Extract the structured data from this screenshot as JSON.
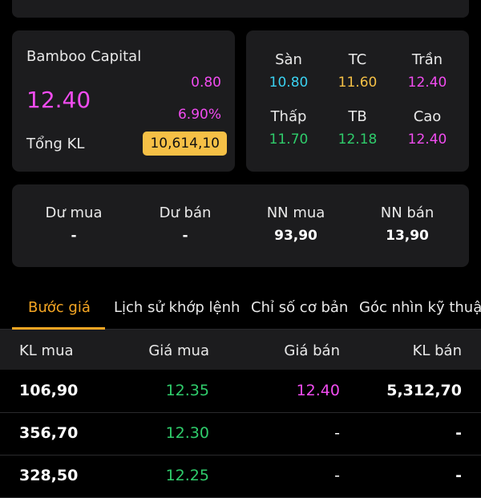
{
  "stock": {
    "company": "Bamboo Capital",
    "price": "12.40",
    "change": "0.80",
    "change_pct": "6.90%",
    "volume_label": "Tổng KL",
    "volume_value": "10,614,10"
  },
  "range": {
    "floor_label": "Sàn",
    "floor": "10.80",
    "ref_label": "TC",
    "ref": "11.60",
    "ceil_label": "Trần",
    "ceil": "12.40",
    "low_label": "Thấp",
    "low": "11.70",
    "avg_label": "TB",
    "avg": "12.18",
    "high_label": "Cao",
    "high": "12.40"
  },
  "foreign": {
    "buy_rem_label": "Dư mua",
    "buy_rem": "-",
    "sell_rem_label": "Dư bán",
    "sell_rem": "-",
    "nn_buy_label": "NN mua",
    "nn_buy": "93,90",
    "nn_sell_label": "NN bán",
    "nn_sell": "13,90"
  },
  "tabs": [
    {
      "label": "Bước giá",
      "active": true
    },
    {
      "label": "Lịch sử khớp lệnh"
    },
    {
      "label": "Chỉ số cơ bản"
    },
    {
      "label": "Góc nhìn kỹ thuật"
    }
  ],
  "book": {
    "headers": {
      "bid_vol": "KL mua",
      "bid": "Giá mua",
      "ask": "Giá bán",
      "ask_vol": "KL bán"
    },
    "rows": [
      {
        "bid_vol": "106,90",
        "bid": "12.35",
        "ask": "12.40",
        "ask_vol": "5,312,70"
      },
      {
        "bid_vol": "356,70",
        "bid": "12.30",
        "ask": "-",
        "ask_vol": "-"
      },
      {
        "bid_vol": "328,50",
        "bid": "12.25",
        "ask": "-",
        "ask_vol": "-"
      }
    ]
  },
  "colors": {
    "pink": "#f14cf0",
    "cyan": "#3ad1f0",
    "yellow": "#f5c046",
    "green": "#2fcc6b",
    "orange": "#f5a623",
    "card": "#1c1c1e"
  }
}
